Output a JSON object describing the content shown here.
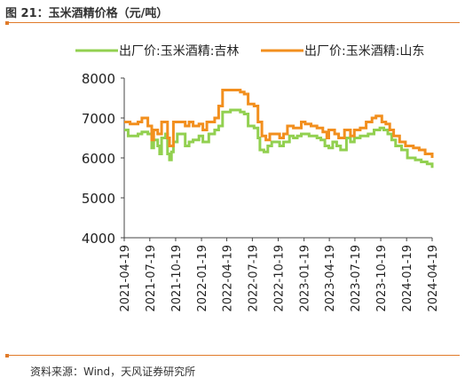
{
  "figure": {
    "title": "图 21：玉米酒精价格（元/吨）",
    "source": "资料来源：Wind，天风证券研究所"
  },
  "chart_data": {
    "type": "line",
    "title": "",
    "xlabel": "",
    "ylabel": "",
    "ylim": [
      4000,
      8000
    ],
    "yticks": [
      4000,
      5000,
      6000,
      7000,
      8000
    ],
    "xticks": [
      "2021-04-19",
      "2021-07-19",
      "2021-10-19",
      "2022-01-19",
      "2022-04-19",
      "2022-07-19",
      "2022-10-19",
      "2023-01-19",
      "2023-04-19",
      "2023-07-19",
      "2023-10-19",
      "2024-01-19",
      "2024-04-19"
    ],
    "x_range": [
      "2021-04-19",
      "2024-04-19"
    ],
    "legend_position": "top",
    "grid": false,
    "series": [
      {
        "name": "出厂价:玉米酒精:吉林",
        "color": "#92d050",
        "points": [
          [
            "2021-04-19",
            6700
          ],
          [
            "2021-05-03",
            6550
          ],
          [
            "2021-06-07",
            6600
          ],
          [
            "2021-06-21",
            6650
          ],
          [
            "2021-07-12",
            6600
          ],
          [
            "2021-07-26",
            6250
          ],
          [
            "2021-08-02",
            6450
          ],
          [
            "2021-08-16",
            6300
          ],
          [
            "2021-08-23",
            6100
          ],
          [
            "2021-08-30",
            6500
          ],
          [
            "2021-09-13",
            6600
          ],
          [
            "2021-09-20",
            6100
          ],
          [
            "2021-09-27",
            5950
          ],
          [
            "2021-10-04",
            6150
          ],
          [
            "2021-10-11",
            6400
          ],
          [
            "2021-10-25",
            6600
          ],
          [
            "2021-11-22",
            6300
          ],
          [
            "2021-12-06",
            6400
          ],
          [
            "2021-12-20",
            6450
          ],
          [
            "2022-01-10",
            6550
          ],
          [
            "2022-01-24",
            6400
          ],
          [
            "2022-02-14",
            6600
          ],
          [
            "2022-03-07",
            6700
          ],
          [
            "2022-03-21",
            6800
          ],
          [
            "2022-04-04",
            7150
          ],
          [
            "2022-05-02",
            7200
          ],
          [
            "2022-06-06",
            7150
          ],
          [
            "2022-06-20",
            7100
          ],
          [
            "2022-07-04",
            6800
          ],
          [
            "2022-07-25",
            6750
          ],
          [
            "2022-08-08",
            6500
          ],
          [
            "2022-08-15",
            6200
          ],
          [
            "2022-08-29",
            6150
          ],
          [
            "2022-09-12",
            6300
          ],
          [
            "2022-09-26",
            6400
          ],
          [
            "2022-10-24",
            6300
          ],
          [
            "2022-11-07",
            6400
          ],
          [
            "2022-11-28",
            6550
          ],
          [
            "2022-12-12",
            6500
          ],
          [
            "2022-12-26",
            6550
          ],
          [
            "2023-01-09",
            6600
          ],
          [
            "2023-02-06",
            6550
          ],
          [
            "2023-03-06",
            6500
          ],
          [
            "2023-03-20",
            6450
          ],
          [
            "2023-04-03",
            6300
          ],
          [
            "2023-04-17",
            6250
          ],
          [
            "2023-05-01",
            6400
          ],
          [
            "2023-05-15",
            6300
          ],
          [
            "2023-05-29",
            6200
          ],
          [
            "2023-06-19",
            6500
          ],
          [
            "2023-07-03",
            6400
          ],
          [
            "2023-07-17",
            6500
          ],
          [
            "2023-08-07",
            6550
          ],
          [
            "2023-09-04",
            6600
          ],
          [
            "2023-09-25",
            6700
          ],
          [
            "2023-10-16",
            6750
          ],
          [
            "2023-10-30",
            6700
          ],
          [
            "2023-11-13",
            6600
          ],
          [
            "2023-11-27",
            6450
          ],
          [
            "2023-12-11",
            6300
          ],
          [
            "2024-01-01",
            6200
          ],
          [
            "2024-01-22",
            6000
          ],
          [
            "2024-02-19",
            5950
          ],
          [
            "2024-03-11",
            5900
          ],
          [
            "2024-04-01",
            5850
          ],
          [
            "2024-04-19",
            5750
          ]
        ]
      },
      {
        "name": "出厂价:玉米酒精:山东",
        "color": "#f28f1e",
        "points": [
          [
            "2021-04-19",
            6900
          ],
          [
            "2021-05-10",
            6850
          ],
          [
            "2021-06-07",
            6900
          ],
          [
            "2021-06-21",
            7000
          ],
          [
            "2021-07-12",
            6800
          ],
          [
            "2021-07-26",
            6450
          ],
          [
            "2021-08-02",
            6700
          ],
          [
            "2021-08-16",
            6600
          ],
          [
            "2021-08-30",
            6900
          ],
          [
            "2021-09-20",
            6500
          ],
          [
            "2021-09-27",
            6300
          ],
          [
            "2021-10-11",
            6900
          ],
          [
            "2021-11-22",
            6800
          ],
          [
            "2021-12-06",
            6900
          ],
          [
            "2021-12-20",
            6800
          ],
          [
            "2022-01-10",
            6850
          ],
          [
            "2022-01-24",
            6700
          ],
          [
            "2022-02-07",
            6900
          ],
          [
            "2022-03-07",
            7000
          ],
          [
            "2022-03-21",
            7300
          ],
          [
            "2022-04-04",
            7700
          ],
          [
            "2022-05-02",
            7700
          ],
          [
            "2022-06-06",
            7650
          ],
          [
            "2022-06-20",
            7600
          ],
          [
            "2022-07-04",
            7350
          ],
          [
            "2022-07-25",
            7300
          ],
          [
            "2022-08-08",
            6900
          ],
          [
            "2022-08-22",
            6550
          ],
          [
            "2022-09-05",
            6450
          ],
          [
            "2022-09-19",
            6600
          ],
          [
            "2022-10-24",
            6500
          ],
          [
            "2022-11-07",
            6600
          ],
          [
            "2022-11-21",
            6800
          ],
          [
            "2022-12-12",
            6750
          ],
          [
            "2023-01-09",
            6900
          ],
          [
            "2023-01-23",
            6850
          ],
          [
            "2023-02-13",
            6800
          ],
          [
            "2023-03-06",
            6750
          ],
          [
            "2023-03-27",
            6650
          ],
          [
            "2023-04-10",
            6500
          ],
          [
            "2023-04-17",
            6700
          ],
          [
            "2023-05-08",
            6600
          ],
          [
            "2023-05-22",
            6500
          ],
          [
            "2023-06-12",
            6700
          ],
          [
            "2023-07-03",
            6550
          ],
          [
            "2023-07-17",
            6700
          ],
          [
            "2023-08-07",
            6750
          ],
          [
            "2023-08-28",
            6900
          ],
          [
            "2023-09-18",
            7000
          ],
          [
            "2023-10-02",
            7050
          ],
          [
            "2023-10-23",
            6900
          ],
          [
            "2023-11-06",
            6850
          ],
          [
            "2023-11-20",
            6700
          ],
          [
            "2023-12-04",
            6550
          ],
          [
            "2023-12-25",
            6400
          ],
          [
            "2024-01-15",
            6300
          ],
          [
            "2024-02-12",
            6250
          ],
          [
            "2024-03-04",
            6200
          ],
          [
            "2024-03-25",
            6100
          ],
          [
            "2024-04-19",
            6000
          ]
        ]
      }
    ]
  }
}
